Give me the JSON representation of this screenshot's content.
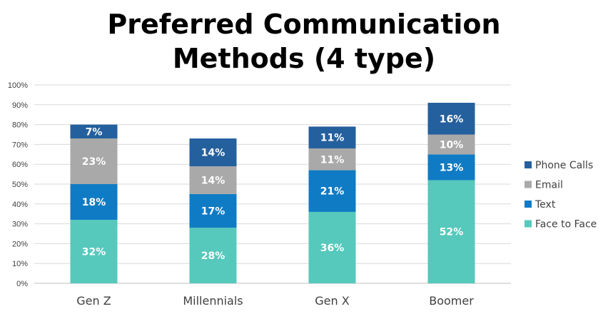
{
  "chart_data": {
    "type": "bar",
    "stacked": true,
    "title_lines": [
      "Preferred Communication",
      "Methods (4 type)"
    ],
    "categories": [
      "Gen Z",
      "Millennials",
      "Gen X",
      "Boomer"
    ],
    "series": [
      {
        "name": "Face to Face",
        "color": "#56C8BC",
        "values": [
          32,
          28,
          36,
          52
        ]
      },
      {
        "name": "Text",
        "color": "#0F7BC4",
        "values": [
          18,
          17,
          21,
          13
        ]
      },
      {
        "name": "Email",
        "color": "#A9A9A9",
        "values": [
          23,
          14,
          11,
          10
        ]
      },
      {
        "name": "Phone Calls",
        "color": "#24609E",
        "values": [
          7,
          14,
          11,
          16
        ]
      }
    ],
    "value_suffix": "%",
    "ylim": [
      0,
      100
    ],
    "y_ticks": [
      "0%",
      "10%",
      "20%",
      "30%",
      "40%",
      "50%",
      "60%",
      "70%",
      "80%",
      "90%",
      "100%"
    ],
    "grid": true,
    "legend_position": "right",
    "xlabel": "",
    "ylabel": ""
  }
}
